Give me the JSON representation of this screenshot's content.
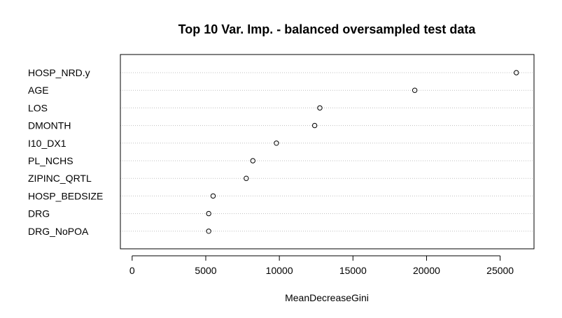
{
  "chart_data": {
    "type": "scatter",
    "title": "Top 10 Var. Imp. - balanced oversampled test data",
    "xlabel": "MeanDecreaseGini",
    "ylabel": "",
    "xlim": [
      -800,
      27300
    ],
    "xticks": [
      0,
      5000,
      10000,
      15000,
      20000,
      25000
    ],
    "xtick_labels": [
      "0",
      "5000",
      "10000",
      "15000",
      "20000",
      "25000"
    ],
    "grid": "horizontal dotted lines per category",
    "legend": "none",
    "categories": [
      "HOSP_NRD.y",
      "AGE",
      "LOS",
      "DMONTH",
      "I10_DX1",
      "PL_NCHS",
      "ZIPINC_QRTL",
      "HOSP_BEDSIZE",
      "DRG",
      "DRG_NoPOA"
    ],
    "values": [
      26100,
      19200,
      12750,
      12400,
      9800,
      8200,
      7750,
      5500,
      5200,
      5200
    ]
  }
}
